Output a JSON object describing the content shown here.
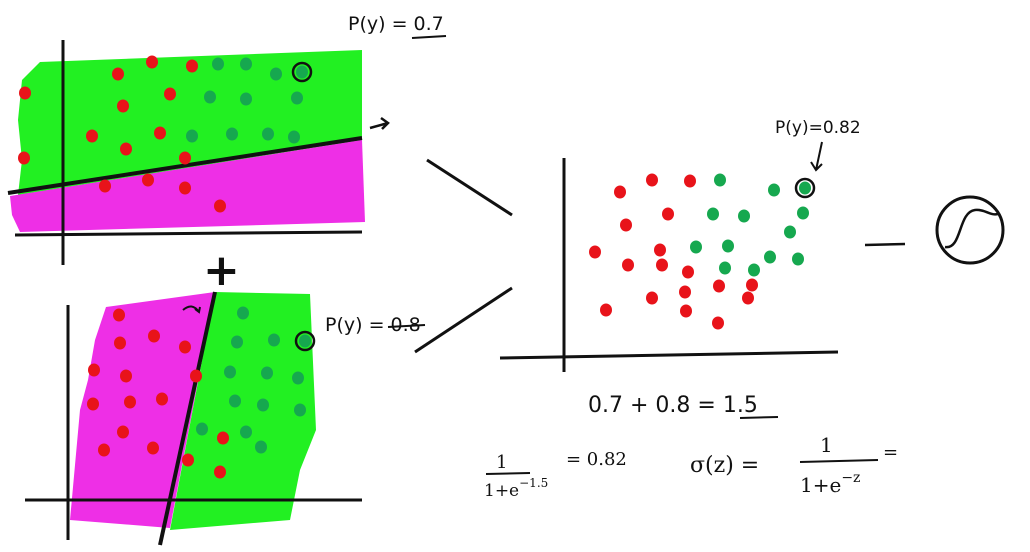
{
  "colors": {
    "green_region": "#22f022",
    "magenta_region": "#ee2fe6",
    "red_point": "#e8131a",
    "green_point": "#16a84f",
    "ink": "#111111"
  },
  "panels": {
    "top": {
      "annotation": "P(y) = 0.7"
    },
    "bottom": {
      "annotation": "P(y) = 0.8"
    },
    "combined": {
      "annotation": "P(y)=0.82"
    }
  },
  "operators": {
    "plus": "+",
    "dash": "—"
  },
  "sum": {
    "text": "0.7 + 0.8 = ",
    "result": "1.5"
  },
  "formula": {
    "numerator": "1",
    "denominator": "1+e",
    "exponent": "−1.5",
    "equals_value": "= 0.82"
  },
  "sigmoid_def": {
    "lhs": "σ(z) =",
    "numerator": "1",
    "denominator": "1+e",
    "exponent": "−z",
    "trailing": "="
  },
  "icons": [
    "sigmoid-icon",
    "arrow-icon"
  ]
}
